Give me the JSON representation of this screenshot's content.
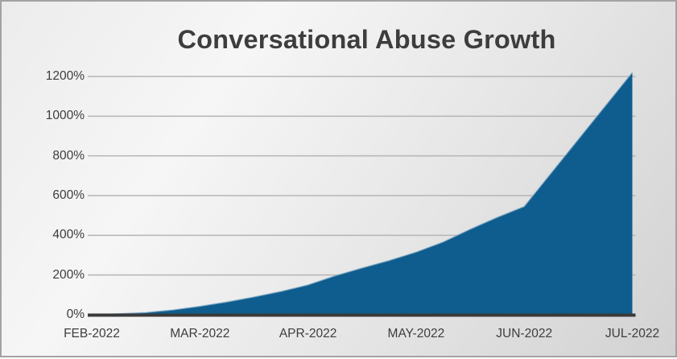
{
  "chart_data": {
    "type": "area",
    "title": "Conversational Abuse Growth",
    "categories": [
      "FEB-2022",
      "MAR-2022",
      "APR-2022",
      "MAY-2022",
      "JUN-2022",
      "JUL-2022"
    ],
    "series": [
      {
        "name": "Conversational abuse growth",
        "values_pct": [
          0,
          42,
          150,
          315,
          545,
          1220
        ]
      }
    ],
    "curve_points_month_pct": [
      [
        0,
        0
      ],
      [
        0.25,
        5
      ],
      [
        0.5,
        11
      ],
      [
        0.75,
        24
      ],
      [
        1,
        42
      ],
      [
        1.25,
        64
      ],
      [
        1.5,
        89
      ],
      [
        1.75,
        117
      ],
      [
        2,
        150
      ],
      [
        2.25,
        196
      ],
      [
        2.5,
        235
      ],
      [
        2.75,
        273
      ],
      [
        3,
        315
      ],
      [
        3.25,
        366
      ],
      [
        3.5,
        430
      ],
      [
        3.75,
        490
      ],
      [
        4,
        545
      ],
      [
        5,
        1220
      ]
    ],
    "y_axis": {
      "ticks": [
        "0%",
        "200%",
        "400%",
        "600%",
        "800%",
        "1000%",
        "1200%"
      ],
      "min_pct": 0,
      "max_pct": 1200,
      "tick_step_pct": 200
    },
    "x_axis": {
      "tick_labels": [
        "FEB-2022",
        "MAR-2022",
        "APR-2022",
        "MAY-2022",
        "JUN-2022",
        "JUL-2022"
      ]
    },
    "legend": "none",
    "gridlines": "horizontal"
  },
  "colors": {
    "area_fill": "#0e5d8e",
    "area_edge": "#7ba6c4",
    "gridline": "#b5b5b5",
    "axis_line": "#3a3a3a",
    "text": "#3d3d3d",
    "frame_border": "#a3a3a3",
    "background_light": "#f6f6f6",
    "background_dark": "#d2d2d2"
  }
}
